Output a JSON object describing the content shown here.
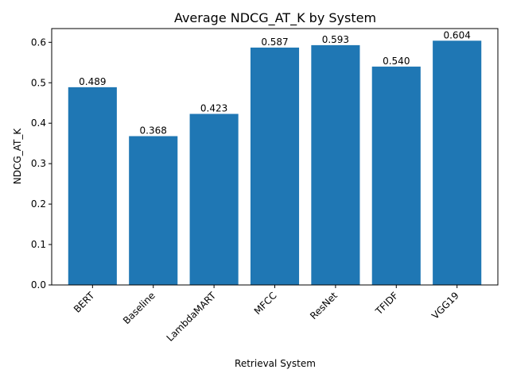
{
  "chart_data": {
    "type": "bar",
    "title": "Average NDCG_AT_K by System",
    "xlabel": "Retrieval System",
    "ylabel": "NDCG_AT_K",
    "categories": [
      "BERT",
      "Baseline",
      "LambdaMART",
      "MFCC",
      "ResNet",
      "TFIDF",
      "VGG19"
    ],
    "values": [
      0.489,
      0.368,
      0.423,
      0.587,
      0.593,
      0.54,
      0.604
    ],
    "value_labels": [
      "0.489",
      "0.368",
      "0.423",
      "0.587",
      "0.593",
      "0.540",
      "0.604"
    ],
    "ylim": [
      0,
      0.634
    ],
    "yticks": [
      0.0,
      0.1,
      0.2,
      0.3,
      0.4,
      0.5,
      0.6
    ],
    "ytick_labels": [
      "0.0",
      "0.1",
      "0.2",
      "0.3",
      "0.4",
      "0.5",
      "0.6"
    ],
    "grid": false,
    "legend": "none",
    "bar_color": "#1f77b4"
  }
}
